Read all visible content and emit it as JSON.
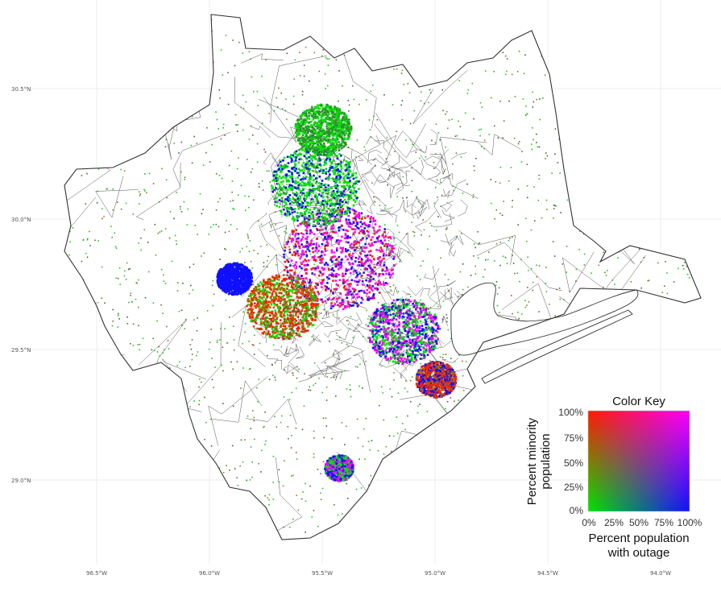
{
  "map": {
    "lon_labels": [
      "96.5°W",
      "96.0°W",
      "95.5°W",
      "95.0°W",
      "94.5°W",
      "94.0°W"
    ],
    "lat_labels": [
      "30.5°N",
      "30.0°N",
      "29.5°N",
      "29.0°N"
    ]
  },
  "legend": {
    "title": "Color Key",
    "y_ticks": [
      "100%",
      "75%",
      "50%",
      "25%",
      "0%"
    ],
    "x_ticks": [
      "0%",
      "25%",
      "50%",
      "75%",
      "100%"
    ],
    "y_label_line1": "Percent minority",
    "y_label_line2": "population",
    "x_label_line1": "Percent population",
    "x_label_line2": "with outage",
    "corner_colors": {
      "low_outage_high_minority": "#ff1a00",
      "high_outage_high_minority": "#ff00ff",
      "low_outage_low_minority": "#00e600",
      "high_outage_low_minority": "#1010ff"
    }
  }
}
